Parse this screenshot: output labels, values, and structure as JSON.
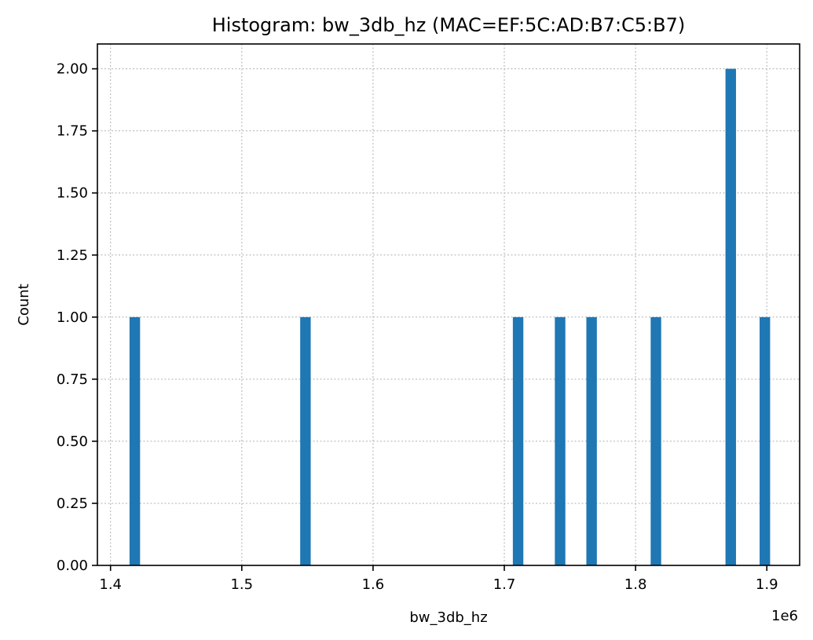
{
  "chart_data": {
    "type": "bar",
    "title": "Histogram: bw_3db_hz (MAC=EF:5C:AD:B7:C5:B7)",
    "xlabel": "bw_3db_hz",
    "ylabel": "Count",
    "x_offset_label": "1e6",
    "xlim": [
      1.39,
      1.925
    ],
    "ylim": [
      0,
      2.1
    ],
    "x_ticks": [
      1.4,
      1.5,
      1.6,
      1.7,
      1.8,
      1.9
    ],
    "x_tick_labels": [
      "1.4",
      "1.5",
      "1.6",
      "1.7",
      "1.8",
      "1.9"
    ],
    "y_ticks": [
      0,
      0.25,
      0.5,
      0.75,
      1.0,
      1.25,
      1.5,
      1.75,
      2.0
    ],
    "y_tick_labels": [
      "0.00",
      "0.25",
      "0.50",
      "0.75",
      "1.00",
      "1.25",
      "1.50",
      "1.75",
      "2.00"
    ],
    "grid": true,
    "bar_color": "#1f77b4",
    "bins": [
      {
        "x0": 1.4145,
        "x1": 1.4225,
        "count": 1
      },
      {
        "x0": 1.5445,
        "x1": 1.5525,
        "count": 1
      },
      {
        "x0": 1.7065,
        "x1": 1.7145,
        "count": 1
      },
      {
        "x0": 1.7385,
        "x1": 1.7465,
        "count": 1
      },
      {
        "x0": 1.7625,
        "x1": 1.7705,
        "count": 1
      },
      {
        "x0": 1.8115,
        "x1": 1.8195,
        "count": 1
      },
      {
        "x0": 1.8685,
        "x1": 1.8765,
        "count": 2
      },
      {
        "x0": 1.8945,
        "x1": 1.9025,
        "count": 1
      }
    ]
  }
}
